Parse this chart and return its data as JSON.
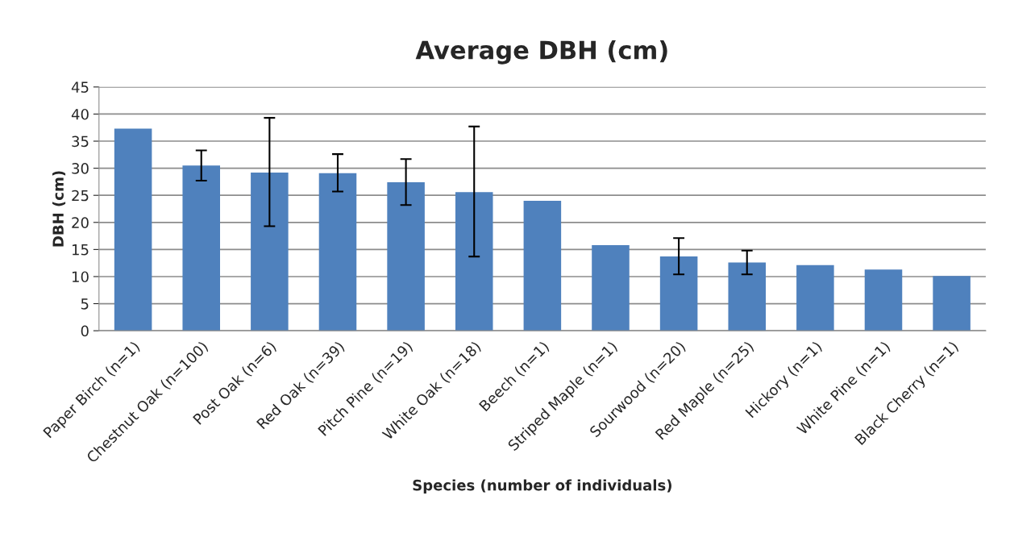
{
  "chart_data": {
    "type": "bar",
    "title": "Average DBH (cm)",
    "xlabel": "Species (number of individuals)",
    "ylabel": "DBH (cm)",
    "categories": [
      "Paper Birch (n=1)",
      "Chestnut Oak (n=100)",
      "Post Oak (n=6)",
      "Red Oak (n=39)",
      "Pitch Pine (n=19)",
      "White Oak (n=18)",
      "Beech (n=1)",
      "Striped Maple (n=1)",
      "Sourwood (n=20)",
      "Red Maple (n=25)",
      "Hickory (n=1)",
      "White Pine (n=1)",
      "Black Cherry (n=1)"
    ],
    "values": [
      37.3,
      30.5,
      29.2,
      29.1,
      27.4,
      25.6,
      24.0,
      15.8,
      13.7,
      12.6,
      12.1,
      11.3,
      10.1
    ],
    "errors": [
      null,
      [
        27.7,
        33.3
      ],
      [
        19.3,
        39.3
      ],
      [
        25.7,
        32.6
      ],
      [
        23.2,
        31.7
      ],
      [
        13.7,
        37.7
      ],
      null,
      null,
      [
        10.4,
        17.1
      ],
      [
        10.4,
        14.8
      ],
      null,
      null,
      null
    ],
    "color": "#4f81bd",
    "ylim": [
      0,
      45
    ],
    "yticks": [
      0,
      5,
      10,
      15,
      20,
      25,
      30,
      35,
      40,
      45
    ],
    "grid": "y",
    "legend": false
  }
}
